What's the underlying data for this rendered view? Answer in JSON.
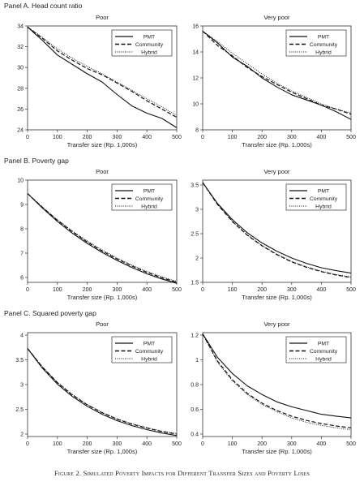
{
  "figure": {
    "caption": "Figure 2. Simulated Poverty Impacts for Different Transfer Sizes and Poverty Lines"
  },
  "legend_labels": [
    "PMT",
    "Community",
    "Hybrid"
  ],
  "panels": [
    {
      "title": "Panel A. Head count ratio"
    },
    {
      "title": "Panel B. Poverty gap"
    },
    {
      "title": "Panel C. Squared poverty gap"
    }
  ],
  "chart_data": [
    {
      "panel": "Panel A. Head count ratio",
      "type": "line",
      "title": "Poor",
      "xlabel": "Transfer size (Rp. 1,000s)",
      "ylabel": "",
      "xlim": [
        0,
        500
      ],
      "ylim": [
        24,
        34
      ],
      "xticks": [
        0,
        100,
        200,
        300,
        400,
        500
      ],
      "yticks": [
        24,
        26,
        28,
        30,
        32,
        34
      ],
      "legend_position": "top-right",
      "x": [
        0,
        50,
        100,
        150,
        200,
        250,
        300,
        350,
        400,
        450,
        500
      ],
      "series": [
        {
          "name": "PMT",
          "style": "solid",
          "values": [
            33.9,
            32.6,
            31.2,
            30.3,
            29.4,
            28.6,
            27.4,
            26.3,
            25.6,
            25.1,
            24.2
          ]
        },
        {
          "name": "Community",
          "style": "dashed",
          "values": [
            33.9,
            32.8,
            31.6,
            30.7,
            29.9,
            29.3,
            28.5,
            27.7,
            26.8,
            26.0,
            25.2
          ]
        },
        {
          "name": "Hybrid",
          "style": "dotted",
          "values": [
            33.9,
            32.9,
            31.8,
            30.9,
            30.1,
            29.4,
            28.6,
            27.8,
            27.0,
            26.2,
            25.4
          ]
        }
      ]
    },
    {
      "panel": "Panel A. Head count ratio",
      "type": "line",
      "title": "Very poor",
      "xlabel": "Transfer size (Rp. 1,000s)",
      "ylabel": "",
      "xlim": [
        0,
        500
      ],
      "ylim": [
        8,
        16
      ],
      "xticks": [
        0,
        100,
        200,
        300,
        400,
        500
      ],
      "yticks": [
        8,
        10,
        12,
        14,
        16
      ],
      "legend_position": "top-right",
      "x": [
        0,
        50,
        100,
        150,
        200,
        250,
        300,
        350,
        400,
        450,
        500
      ],
      "series": [
        {
          "name": "PMT",
          "style": "solid",
          "values": [
            15.6,
            14.7,
            13.6,
            12.9,
            12.0,
            11.3,
            10.7,
            10.3,
            9.9,
            9.4,
            8.8
          ]
        },
        {
          "name": "Community",
          "style": "dashed",
          "values": [
            15.6,
            14.5,
            13.7,
            12.8,
            12.1,
            11.5,
            10.9,
            10.4,
            9.9,
            9.6,
            9.2
          ]
        },
        {
          "name": "Hybrid",
          "style": "dotted",
          "values": [
            15.6,
            14.8,
            13.9,
            13.1,
            12.3,
            11.6,
            11.0,
            10.5,
            10.0,
            9.6,
            9.3
          ]
        }
      ]
    },
    {
      "panel": "Panel B. Poverty gap",
      "type": "line",
      "title": "Poor",
      "xlabel": "Transfer size (Rp. 1,000s)",
      "ylabel": "",
      "xlim": [
        0,
        500
      ],
      "ylim": [
        5.8,
        10
      ],
      "xticks": [
        0,
        100,
        200,
        300,
        400,
        500
      ],
      "yticks": [
        6,
        7,
        8,
        9,
        10
      ],
      "legend_position": "top-right",
      "x": [
        0,
        50,
        100,
        150,
        200,
        250,
        300,
        350,
        400,
        450,
        500
      ],
      "series": [
        {
          "name": "PMT",
          "style": "solid",
          "values": [
            9.45,
            8.85,
            8.3,
            7.82,
            7.4,
            7.03,
            6.7,
            6.41,
            6.15,
            5.94,
            5.76
          ]
        },
        {
          "name": "Community",
          "style": "dashed",
          "values": [
            9.45,
            8.88,
            8.35,
            7.88,
            7.46,
            7.09,
            6.76,
            6.47,
            6.21,
            5.99,
            5.8
          ]
        },
        {
          "name": "Hybrid",
          "style": "dotted",
          "values": [
            9.45,
            8.89,
            8.37,
            7.91,
            7.5,
            7.13,
            6.8,
            6.51,
            6.25,
            6.03,
            5.84
          ]
        }
      ]
    },
    {
      "panel": "Panel B. Poverty gap",
      "type": "line",
      "title": "Very poor",
      "xlabel": "Transfer size (Rp. 1,000s)",
      "ylabel": "",
      "xlim": [
        0,
        500
      ],
      "ylim": [
        1.5,
        3.6
      ],
      "xticks": [
        0,
        100,
        200,
        300,
        400,
        500
      ],
      "yticks": [
        1.5,
        2,
        2.5,
        3,
        3.5
      ],
      "legend_position": "top-right",
      "x": [
        0,
        50,
        100,
        150,
        200,
        250,
        300,
        350,
        400,
        450,
        500
      ],
      "series": [
        {
          "name": "PMT",
          "style": "solid",
          "values": [
            3.55,
            3.12,
            2.79,
            2.52,
            2.31,
            2.14,
            2.0,
            1.89,
            1.8,
            1.74,
            1.69
          ]
        },
        {
          "name": "Community",
          "style": "dashed",
          "values": [
            3.55,
            3.1,
            2.75,
            2.47,
            2.25,
            2.07,
            1.92,
            1.81,
            1.72,
            1.65,
            1.6
          ]
        },
        {
          "name": "Hybrid",
          "style": "dotted",
          "values": [
            3.55,
            3.11,
            2.76,
            2.48,
            2.26,
            2.08,
            1.93,
            1.82,
            1.73,
            1.66,
            1.61
          ]
        }
      ]
    },
    {
      "panel": "Panel C. Squared poverty gap",
      "type": "line",
      "title": "Poor",
      "xlabel": "Transfer size (Rp. 1,000s)",
      "ylabel": "",
      "xlim": [
        0,
        500
      ],
      "ylim": [
        1.95,
        4.05
      ],
      "xticks": [
        0,
        100,
        200,
        300,
        400,
        500
      ],
      "yticks": [
        2,
        2.5,
        3,
        3.5,
        4
      ],
      "legend_position": "top-right",
      "x": [
        0,
        50,
        100,
        150,
        200,
        250,
        300,
        350,
        400,
        450,
        500
      ],
      "series": [
        {
          "name": "PMT",
          "style": "solid",
          "values": [
            3.73,
            3.33,
            3.01,
            2.76,
            2.56,
            2.4,
            2.27,
            2.17,
            2.09,
            2.02,
            1.97
          ]
        },
        {
          "name": "Community",
          "style": "dashed",
          "values": [
            3.73,
            3.35,
            3.04,
            2.79,
            2.59,
            2.43,
            2.3,
            2.2,
            2.12,
            2.05,
            2.0
          ]
        },
        {
          "name": "Hybrid",
          "style": "dotted",
          "values": [
            3.73,
            3.36,
            3.05,
            2.8,
            2.6,
            2.44,
            2.31,
            2.21,
            2.13,
            2.06,
            2.01
          ]
        }
      ]
    },
    {
      "panel": "Panel C. Squared poverty gap",
      "type": "line",
      "title": "Very poor",
      "xlabel": "Transfer size (Rp. 1,000s)",
      "ylabel": "",
      "xlim": [
        0,
        500
      ],
      "ylim": [
        0.38,
        1.22
      ],
      "xticks": [
        0,
        100,
        200,
        300,
        400,
        500
      ],
      "yticks": [
        0.4,
        0.6,
        0.8,
        1,
        1.2
      ],
      "legend_position": "top-right",
      "x": [
        0,
        50,
        100,
        150,
        200,
        250,
        300,
        350,
        400,
        450,
        500
      ],
      "series": [
        {
          "name": "PMT",
          "style": "solid",
          "values": [
            1.21,
            1.02,
            0.89,
            0.79,
            0.72,
            0.66,
            0.62,
            0.59,
            0.56,
            0.545,
            0.53
          ]
        },
        {
          "name": "Community",
          "style": "dashed",
          "values": [
            1.21,
            0.99,
            0.84,
            0.73,
            0.65,
            0.59,
            0.545,
            0.51,
            0.485,
            0.465,
            0.45
          ]
        },
        {
          "name": "Hybrid",
          "style": "dotted",
          "values": [
            1.21,
            0.98,
            0.83,
            0.72,
            0.64,
            0.58,
            0.53,
            0.495,
            0.47,
            0.45,
            0.435
          ]
        }
      ]
    }
  ]
}
